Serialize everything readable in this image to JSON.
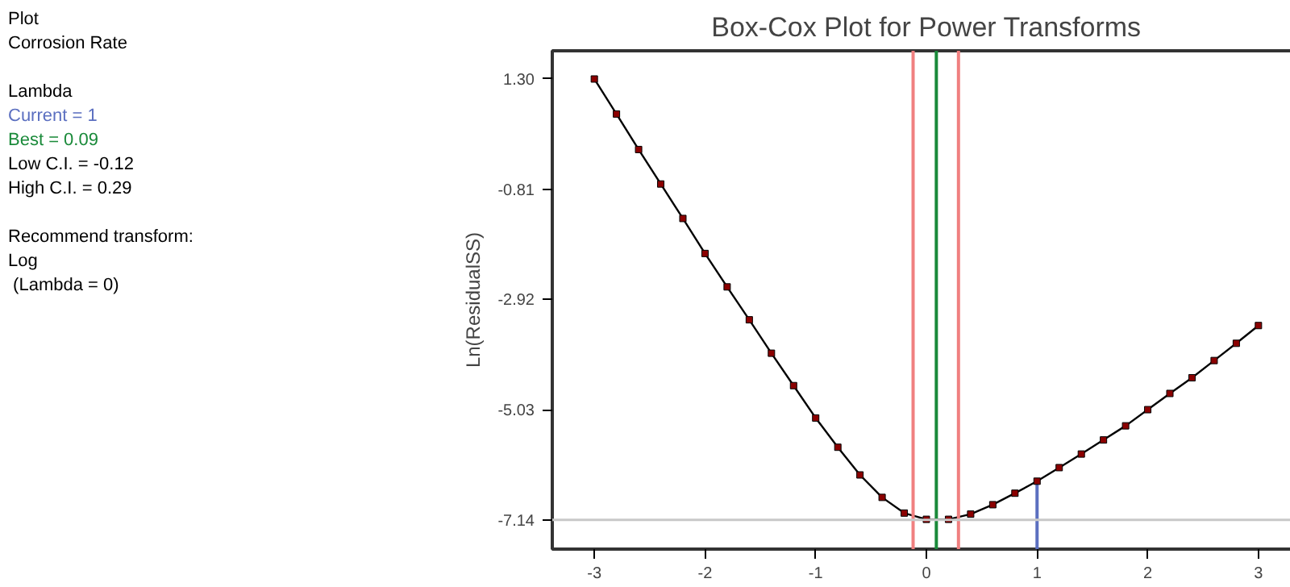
{
  "chart_data": {
    "type": "line",
    "title": "Box-Cox Plot for Power Transforms",
    "ylabel": "Ln(ResidualSS)",
    "x": [
      -3,
      -2.8,
      -2.6,
      -2.4,
      -2.2,
      -2.0,
      -1.8,
      -1.6,
      -1.4,
      -1.2,
      -1.0,
      -0.8,
      -0.6,
      -0.4,
      -0.2,
      0,
      0.2,
      0.4,
      0.6,
      0.8,
      1.0,
      1.2,
      1.4,
      1.6,
      1.8,
      2.0,
      2.2,
      2.4,
      2.6,
      2.8,
      3.0
    ],
    "series": [
      {
        "color": "#000000",
        "values": [
          1.3,
          0.63,
          -0.05,
          -0.71,
          -1.37,
          -2.04,
          -2.68,
          -3.31,
          -3.95,
          -4.57,
          -5.19,
          -5.75,
          -6.28,
          -6.71,
          -7.01,
          -7.13,
          -7.13,
          -7.03,
          -6.85,
          -6.63,
          -6.4,
          -6.14,
          -5.88,
          -5.61,
          -5.34,
          -5.03,
          -4.72,
          -4.42,
          -4.09,
          -3.76,
          -3.42
        ]
      }
    ],
    "marker": "square",
    "xlim": [
      -3.38,
      3.38
    ],
    "ylim": [
      -7.7,
      1.84
    ],
    "xticks": [
      -3,
      -2,
      -1,
      0,
      1,
      2,
      3
    ],
    "yticks": [
      {
        "value": 1.3,
        "label": "1.30"
      },
      -0.81,
      -2.92,
      -5.03,
      -7.14
    ],
    "grid": false,
    "ref_lines": [
      {
        "axis": "x",
        "value": 1,
        "label": "Current = 1",
        "color": "#5b6fc0"
      },
      {
        "axis": "x",
        "value": 0.09,
        "label": "Best = 0.09",
        "color": "#1a8a3a"
      },
      {
        "axis": "x",
        "value": -0.12,
        "color": "#f08080"
      },
      {
        "axis": "x",
        "value": 0.29,
        "color": "#f08080"
      },
      {
        "axis": "y",
        "value": -7.14,
        "color": "#c8c8c8"
      }
    ],
    "annotations": [
      "Plot",
      "Corrosion Rate",
      "Lambda",
      "Low C.I. = -0.12",
      "High C.I. = 0.29",
      "Recommend transform:",
      "Log",
      " (Lambda = 0)"
    ]
  }
}
